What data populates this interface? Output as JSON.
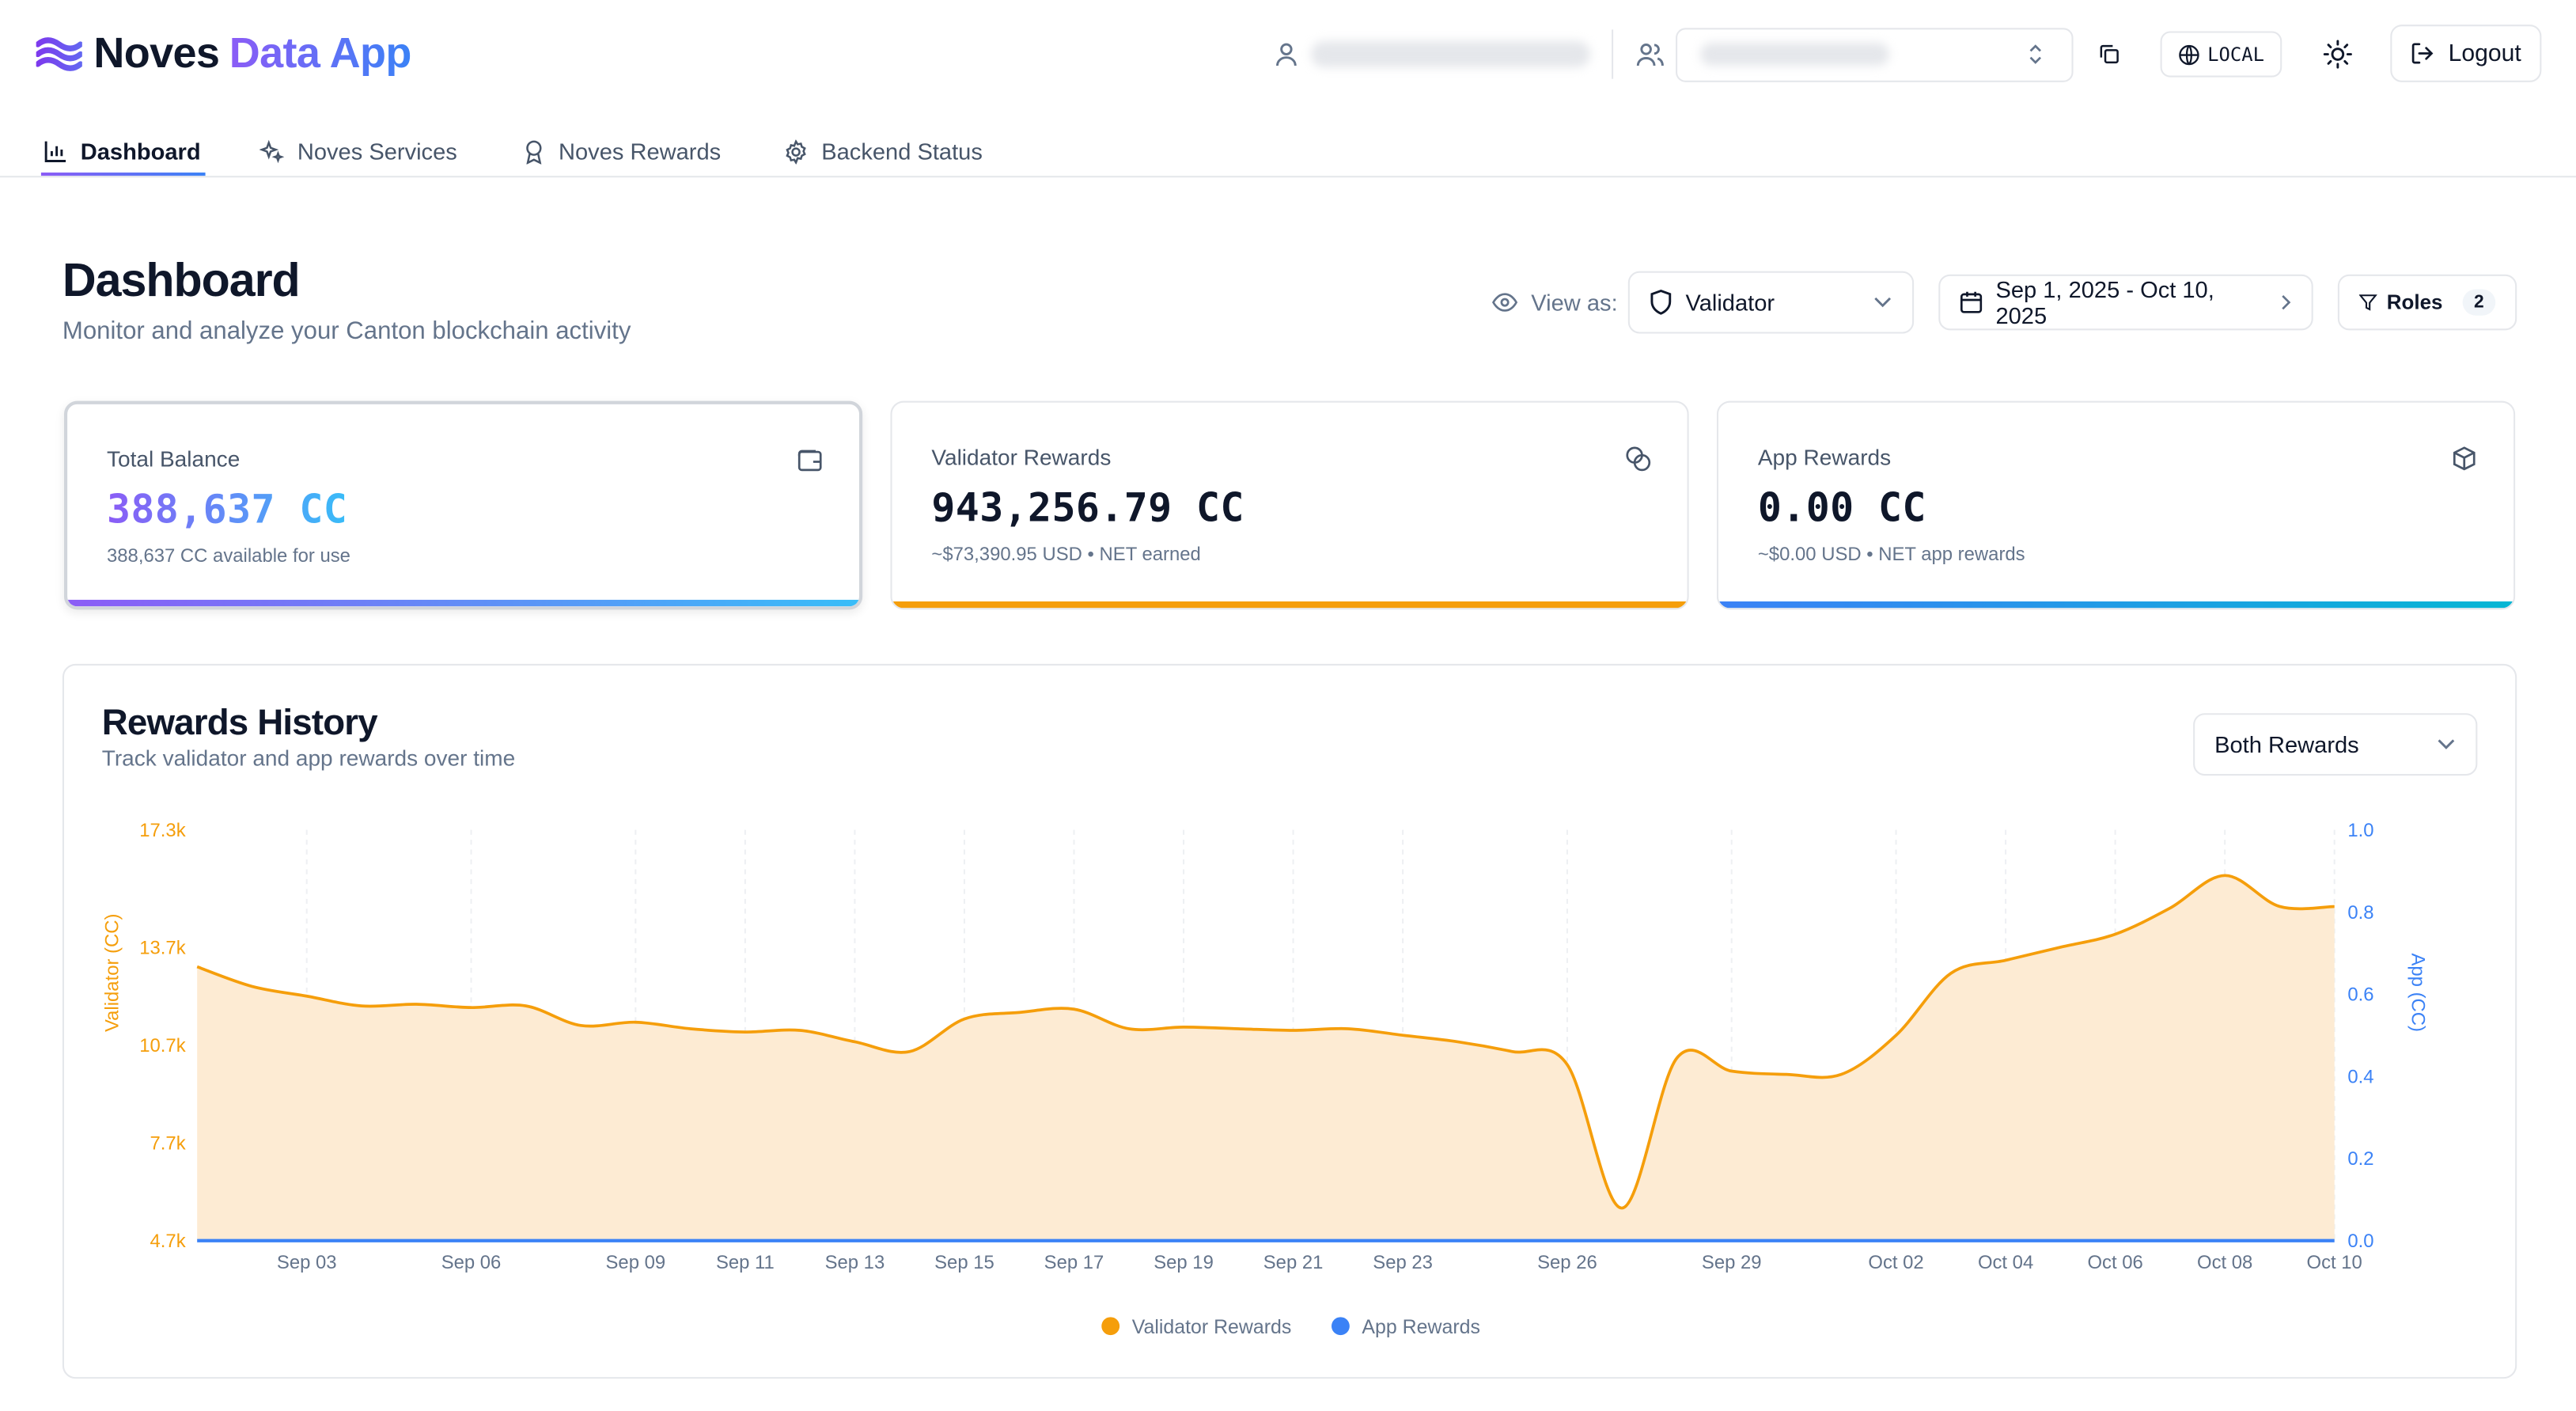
{
  "brand": {
    "part1": "Noves",
    "part2": "Data App"
  },
  "header": {
    "env_label": "LOCAL",
    "logout_label": "Logout"
  },
  "tabs": [
    {
      "label": "Dashboard",
      "icon": "bar-chart-icon"
    },
    {
      "label": "Noves Services",
      "icon": "sparkles-icon"
    },
    {
      "label": "Noves Rewards",
      "icon": "award-icon"
    },
    {
      "label": "Backend Status",
      "icon": "gear-icon"
    }
  ],
  "page": {
    "title": "Dashboard",
    "subtitle": "Monitor and analyze your Canton blockchain activity",
    "view_as_label": "View as:",
    "role_value": "Validator",
    "date_range": "Sep 1, 2025 - Oct 10, 2025",
    "roles_label": "Roles",
    "roles_count": "2"
  },
  "cards": [
    {
      "label": "Total Balance",
      "value": "388,637 CC",
      "sub": "388,637 CC available for use",
      "icon": "wallet-icon",
      "accent": "#8b5cf6",
      "accent2": "#38bdf8"
    },
    {
      "label": "Validator Rewards",
      "value": "943,256.79 CC",
      "sub": "~$73,390.95 USD • NET earned",
      "icon": "coins-icon",
      "accent": "#f59e0b"
    },
    {
      "label": "App Rewards",
      "value": "0.00 CC",
      "sub": "~$0.00 USD • NET app rewards",
      "icon": "box-icon",
      "accent": "#3b82f6",
      "accent2": "#06b6d4"
    }
  ],
  "rewards": {
    "title": "Rewards History",
    "subtitle": "Track validator and app rewards over time",
    "filter_value": "Both Rewards"
  },
  "colors": {
    "validator": "#f59e0b",
    "app": "#3b82f6",
    "validator_fill": "#fdebd3"
  },
  "chart_data": {
    "type": "area",
    "x": [
      "Sep 01",
      "Sep 02",
      "Sep 03",
      "Sep 04",
      "Sep 05",
      "Sep 06",
      "Sep 07",
      "Sep 08",
      "Sep 09",
      "Sep 10",
      "Sep 11",
      "Sep 12",
      "Sep 13",
      "Sep 14",
      "Sep 15",
      "Sep 16",
      "Sep 17",
      "Sep 18",
      "Sep 19",
      "Sep 20",
      "Sep 21",
      "Sep 22",
      "Sep 23",
      "Sep 24",
      "Sep 25",
      "Sep 26",
      "Sep 27",
      "Sep 28",
      "Sep 29",
      "Sep 30",
      "Oct 01",
      "Oct 02",
      "Oct 03",
      "Oct 04",
      "Oct 05",
      "Oct 06",
      "Oct 07",
      "Oct 08",
      "Oct 09",
      "Oct 10"
    ],
    "x_ticks": [
      "Sep 03",
      "Sep 06",
      "Sep 09",
      "Sep 11",
      "Sep 13",
      "Sep 15",
      "Sep 17",
      "Sep 19",
      "Sep 21",
      "Sep 23",
      "Sep 26",
      "Sep 29",
      "Oct 02",
      "Oct 04",
      "Oct 06",
      "Oct 08",
      "Oct 10"
    ],
    "y_left": {
      "label": "Validator (CC)",
      "ticks": [
        "4.7k",
        "7.7k",
        "10.7k",
        "13.7k",
        "17.3k"
      ],
      "range": [
        4700,
        17300
      ]
    },
    "y_right": {
      "label": "App (CC)",
      "ticks": [
        "0.0",
        "0.2",
        "0.4",
        "0.6",
        "0.8",
        "1.0"
      ],
      "range": [
        0,
        1
      ]
    },
    "series": [
      {
        "name": "Validator Rewards",
        "axis": "left",
        "values": [
          13100,
          12500,
          12200,
          11900,
          11950,
          11850,
          11900,
          11300,
          11400,
          11200,
          11100,
          11150,
          10800,
          10500,
          11500,
          11700,
          11800,
          11200,
          11250,
          11200,
          11150,
          11200,
          11000,
          10800,
          10500,
          10100,
          5700,
          10300,
          9900,
          9800,
          9800,
          11000,
          12900,
          13300,
          13700,
          14100,
          14900,
          15900,
          14950,
          14950
        ]
      },
      {
        "name": "App Rewards",
        "axis": "right",
        "values": [
          0,
          0,
          0,
          0,
          0,
          0,
          0,
          0,
          0,
          0,
          0,
          0,
          0,
          0,
          0,
          0,
          0,
          0,
          0,
          0,
          0,
          0,
          0,
          0,
          0,
          0,
          0,
          0,
          0,
          0,
          0,
          0,
          0,
          0,
          0,
          0,
          0,
          0,
          0,
          0
        ]
      }
    ],
    "legend": [
      "Validator Rewards",
      "App Rewards"
    ],
    "legend_position": "bottom",
    "grid": true
  }
}
